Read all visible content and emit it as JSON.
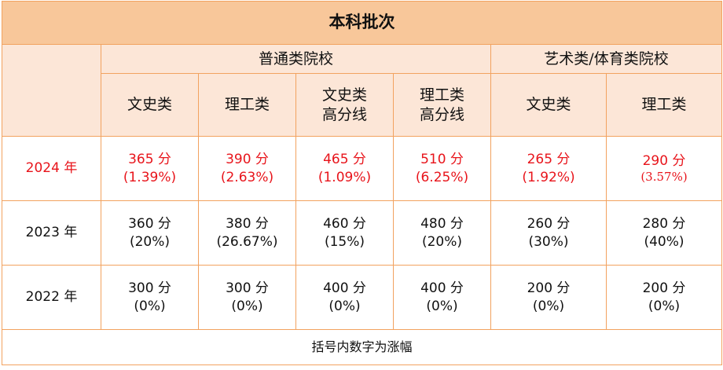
{
  "title": "本科批次",
  "groups": [
    "普通类院校",
    "艺术类/体育类院校"
  ],
  "subheaders": [
    [
      "文史类"
    ],
    [
      "理工类"
    ],
    [
      "文史类",
      "高分线"
    ],
    [
      "理工类",
      "高分线"
    ],
    [
      "文史类"
    ],
    [
      "理工类"
    ]
  ],
  "rows": [
    {
      "year": "2024 年",
      "cells": [
        {
          "score": "365 分",
          "change": "(1.39%)"
        },
        {
          "score": "390 分",
          "change": "(2.63%)"
        },
        {
          "score": "465 分",
          "change": "(1.09%)"
        },
        {
          "score": "510 分",
          "change": "(6.25%)"
        },
        {
          "score": "265 分",
          "change": "(1.92%)"
        },
        {
          "score": "290 分",
          "change": "(3.57%)"
        }
      ]
    },
    {
      "year": "2023 年",
      "cells": [
        {
          "score": "360 分",
          "change": "(20%)"
        },
        {
          "score": "380 分",
          "change": "(26.67%)"
        },
        {
          "score": "460 分",
          "change": "(15%)"
        },
        {
          "score": "480 分",
          "change": "(20%)"
        },
        {
          "score": "260 分",
          "change": "(30%)"
        },
        {
          "score": "280 分",
          "change": "(40%)"
        }
      ]
    },
    {
      "year": "2022 年",
      "cells": [
        {
          "score": "300 分",
          "change": "(0%)"
        },
        {
          "score": "300 分",
          "change": "(0%)"
        },
        {
          "score": "400 分",
          "change": "(0%)"
        },
        {
          "score": "400 分",
          "change": "(0%)"
        },
        {
          "score": "200 分",
          "change": "(0%)"
        },
        {
          "score": "200 分",
          "change": "(0%)"
        }
      ]
    }
  ],
  "note": "括号内数字为涨幅",
  "colors": {
    "header": "#f8c79a",
    "subheader": "#fce6d7",
    "border": "#f2a25f",
    "highlight": "#e8141b"
  }
}
